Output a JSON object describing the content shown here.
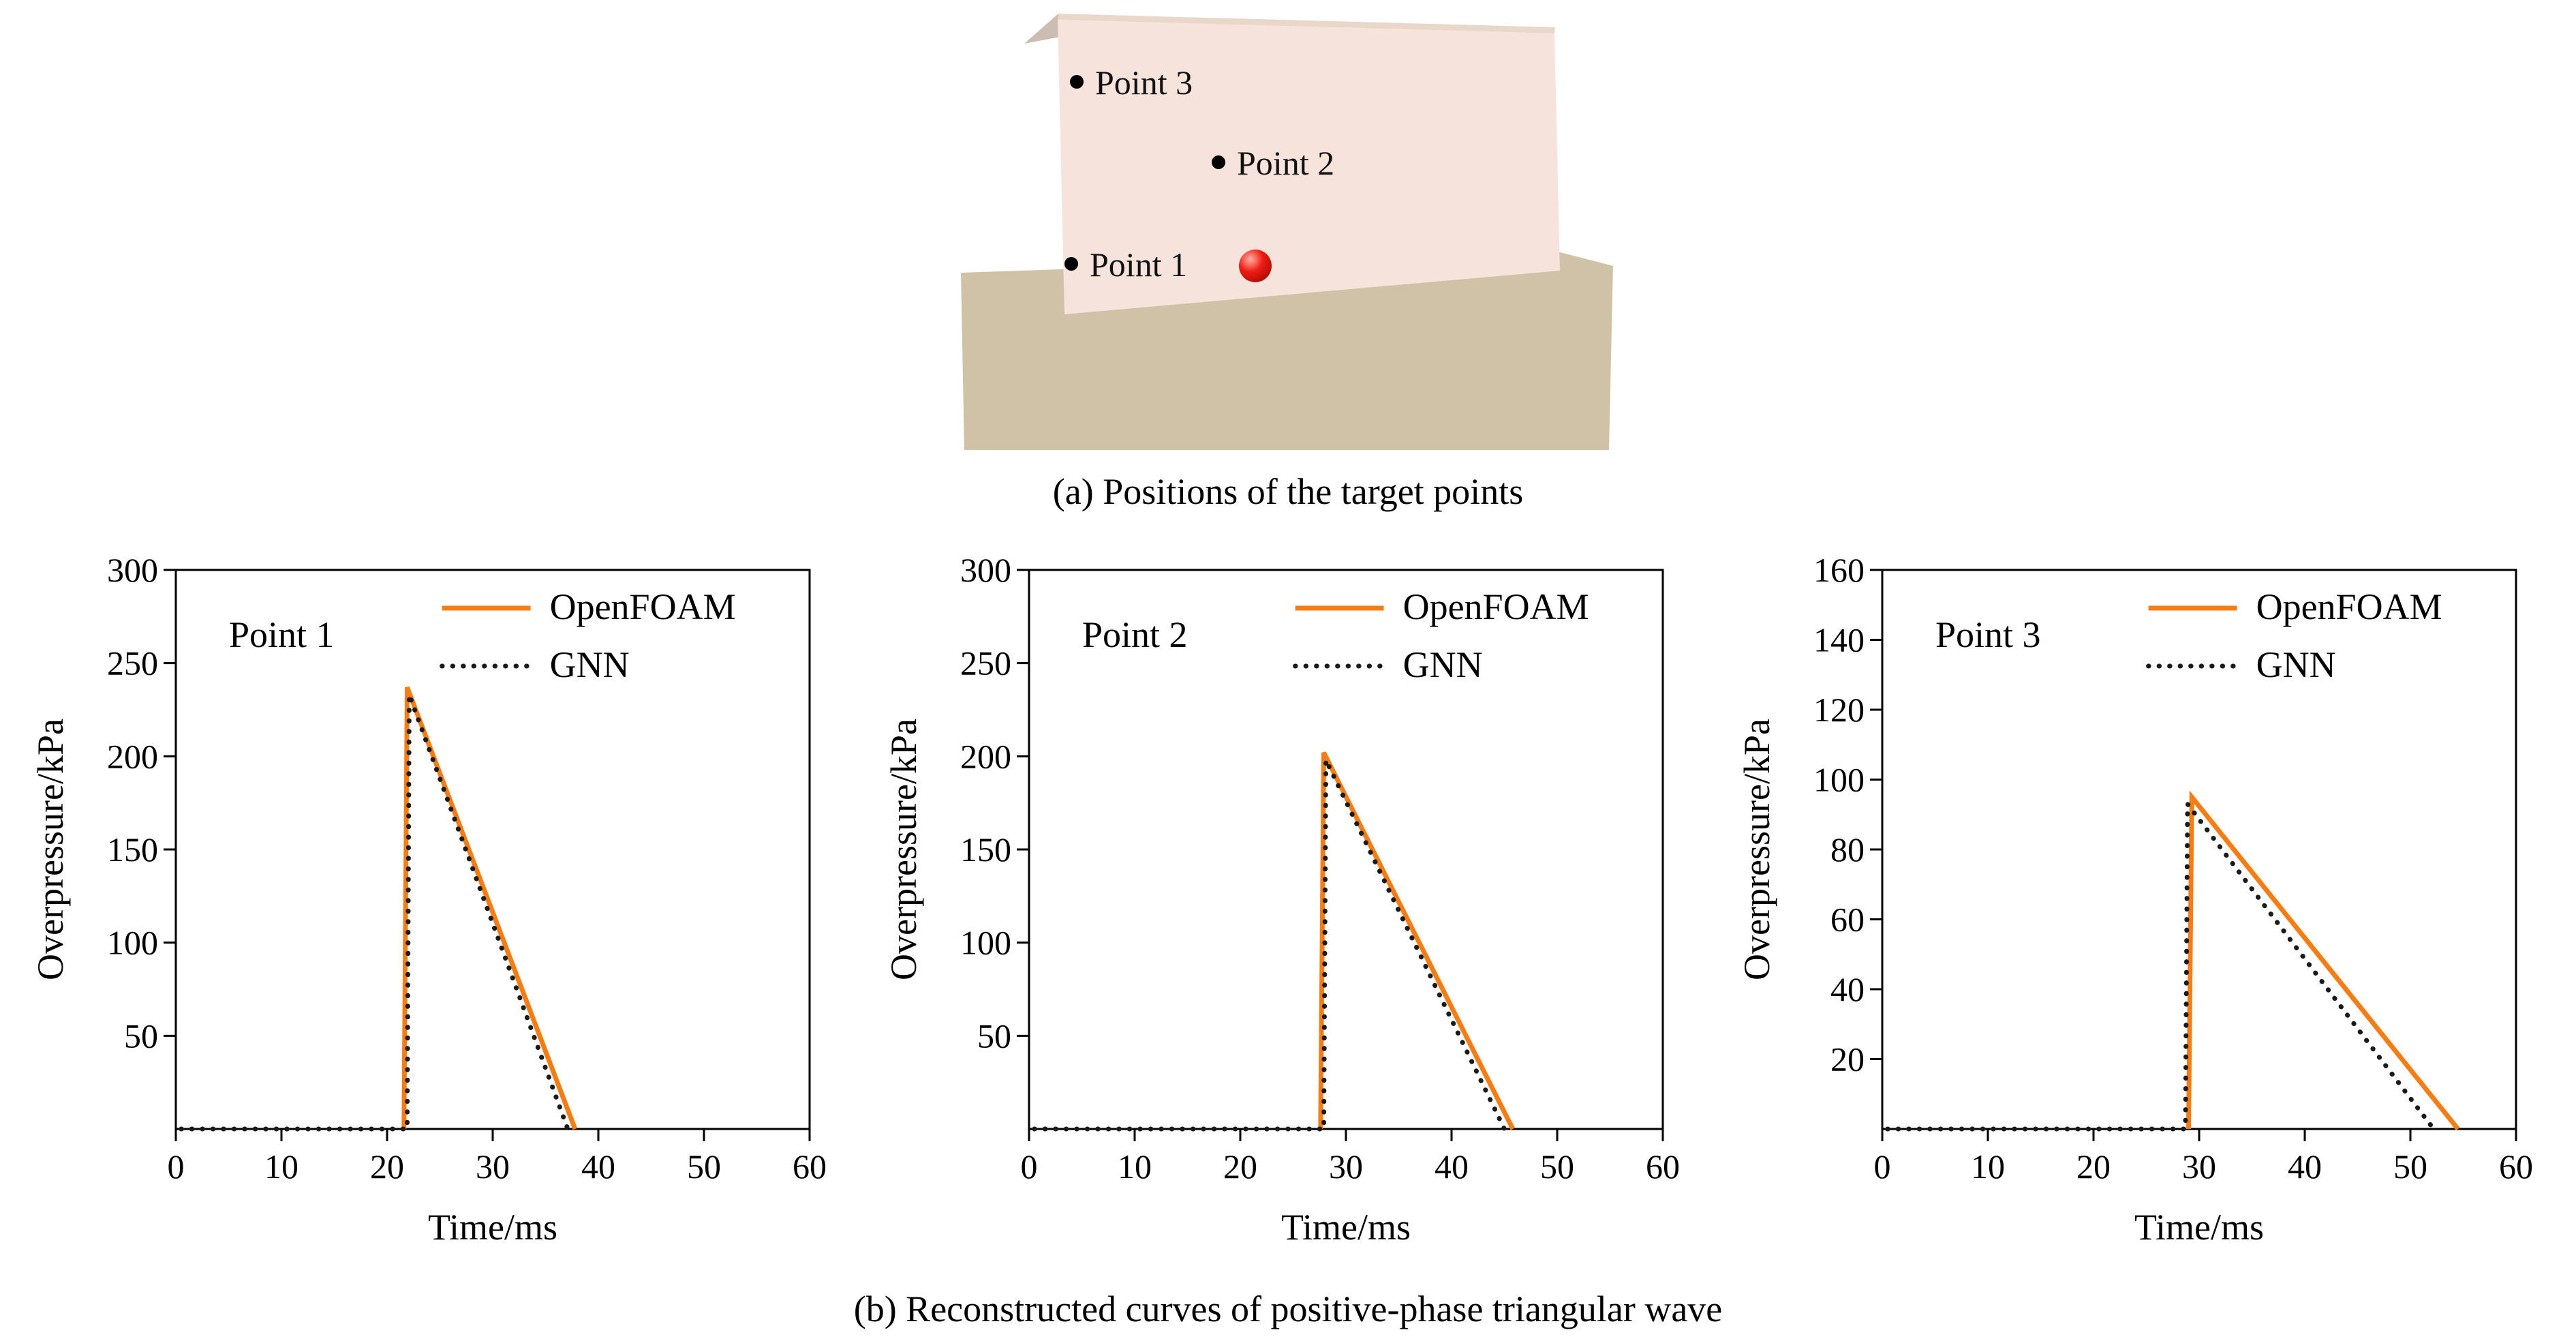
{
  "illustration": {
    "caption": "(a) Positions of the target points",
    "points": [
      {
        "label": "Point 3"
      },
      {
        "label": "Point 2"
      },
      {
        "label": "Point 1"
      }
    ],
    "colors": {
      "wall_face": "#f5e3dc",
      "wall_top": "#e9d8ca",
      "wall_edge": "#cbbdb2",
      "ground": "#cfc2a6",
      "point_dot": "#000000",
      "target_marker": "#e3140c"
    }
  },
  "figure_caption": "(b) Reconstructed curves of positive-phase triangular wave",
  "chart_data": [
    {
      "type": "line",
      "title": "Point 1",
      "xlabel": "Time/ms",
      "ylabel": "Overpressure/kPa",
      "xlim": [
        0,
        60
      ],
      "ylim": [
        0,
        300
      ],
      "xticks": [
        0,
        10,
        20,
        30,
        40,
        50,
        60
      ],
      "yticks": [
        50,
        100,
        150,
        200,
        250,
        300
      ],
      "grid": false,
      "legend_position": "top-center-inside",
      "series": [
        {
          "name": "OpenFOAM",
          "style": "solid",
          "color": "#f57d14",
          "points": [
            [
              21.6,
              0
            ],
            [
              21.9,
              237
            ],
            [
              37.8,
              0
            ]
          ]
        },
        {
          "name": "GNN",
          "style": "dotted",
          "color": "#1a1a1a",
          "points": [
            [
              0.5,
              0
            ],
            [
              21.9,
              0
            ],
            [
              22.1,
              233
            ],
            [
              37.1,
              0
            ]
          ]
        }
      ]
    },
    {
      "type": "line",
      "title": "Point 2",
      "xlabel": "Time/ms",
      "ylabel": "Overpressure/kPa",
      "xlim": [
        0,
        60
      ],
      "ylim": [
        0,
        300
      ],
      "xticks": [
        0,
        10,
        20,
        30,
        40,
        50,
        60
      ],
      "yticks": [
        50,
        100,
        150,
        200,
        250,
        300
      ],
      "grid": false,
      "legend_position": "top-center-inside",
      "series": [
        {
          "name": "OpenFOAM",
          "style": "solid",
          "color": "#f57d14",
          "points": [
            [
              27.6,
              0
            ],
            [
              27.9,
              202
            ],
            [
              45.8,
              0
            ]
          ]
        },
        {
          "name": "GNN",
          "style": "dotted",
          "color": "#1a1a1a",
          "points": [
            [
              0.5,
              0
            ],
            [
              27.9,
              0
            ],
            [
              28.1,
              198
            ],
            [
              45.0,
              0
            ]
          ]
        }
      ]
    },
    {
      "type": "line",
      "title": "Point 3",
      "xlabel": "Time/ms",
      "ylabel": "Overpressure/kPa",
      "xlim": [
        0,
        60
      ],
      "ylim": [
        0,
        160
      ],
      "xticks": [
        0,
        10,
        20,
        30,
        40,
        50,
        60
      ],
      "yticks": [
        20,
        40,
        60,
        80,
        100,
        120,
        140,
        160
      ],
      "grid": false,
      "legend_position": "top-center-inside",
      "series": [
        {
          "name": "OpenFOAM",
          "style": "solid",
          "color": "#f57d14",
          "points": [
            [
              29.0,
              0
            ],
            [
              29.3,
              95
            ],
            [
              54.5,
              0
            ]
          ]
        },
        {
          "name": "GNN",
          "style": "dotted",
          "color": "#1a1a1a",
          "points": [
            [
              0.5,
              0
            ],
            [
              28.7,
              0
            ],
            [
              28.9,
              93
            ],
            [
              52.2,
              0
            ]
          ]
        }
      ]
    }
  ]
}
